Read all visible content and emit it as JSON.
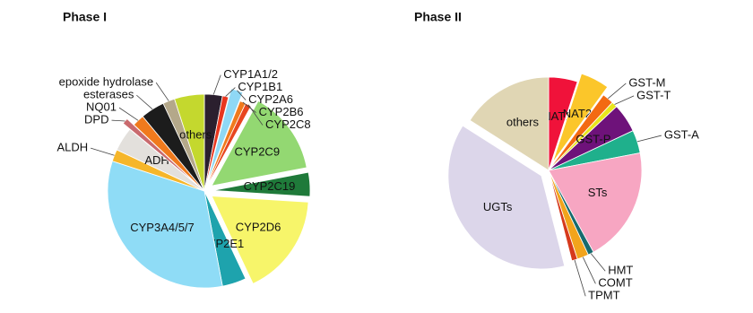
{
  "chart_data": [
    {
      "type": "pie",
      "title": "Phase I",
      "categories": [
        "CYP1A1/2",
        "CYP1B1",
        "CYP2A6",
        "CYP2B6",
        "CYP2C8",
        "CYP2C9",
        "CYP2C19",
        "CYP2D6",
        "CYP2E1",
        "CYP3A4/5/7",
        "ALDH",
        "ADH",
        "DPD",
        "NQ01",
        "esterases",
        "epoxide hydrolase",
        "others"
      ],
      "values": [
        3,
        1,
        2,
        1,
        1,
        14,
        4,
        17,
        4,
        33,
        2,
        4,
        1,
        2,
        4,
        2,
        5
      ],
      "colors": [
        "#2b1f2e",
        "#e8361f",
        "#8fd8f5",
        "#f07a1d",
        "#e8461f",
        "#93d872",
        "#1f7a3a",
        "#f7f56a",
        "#1ea3ad",
        "#8fdcf6",
        "#f6b62a",
        "#e3e0dc",
        "#c96a6e",
        "#f07a1d",
        "#1c1c1c",
        "#b4a88a",
        "#c4d82e"
      ],
      "explode": [
        false,
        false,
        true,
        false,
        false,
        true,
        true,
        true,
        false,
        false,
        false,
        false,
        true,
        false,
        false,
        false,
        false
      ]
    },
    {
      "type": "pie",
      "title": "Phase II",
      "categories": [
        "NAT1",
        "NAT2",
        "GST-M",
        "GST-T",
        "GST-P",
        "GST-A",
        "STs",
        "HMT",
        "COMT",
        "TPMT",
        "UGTs",
        "others"
      ],
      "values": [
        5,
        5,
        2,
        1,
        5,
        4,
        20,
        1,
        2,
        1,
        38,
        16
      ],
      "colors": [
        "#f0123a",
        "#fbc62a",
        "#f36a12",
        "#e8e61c",
        "#6e127a",
        "#1fb08c",
        "#f7a6c2",
        "#176a6e",
        "#f2a41c",
        "#d63a1c",
        "#dcd6ea",
        "#e0d6b4"
      ],
      "explode": [
        false,
        true,
        false,
        false,
        false,
        false,
        false,
        false,
        false,
        false,
        true,
        false
      ]
    }
  ]
}
